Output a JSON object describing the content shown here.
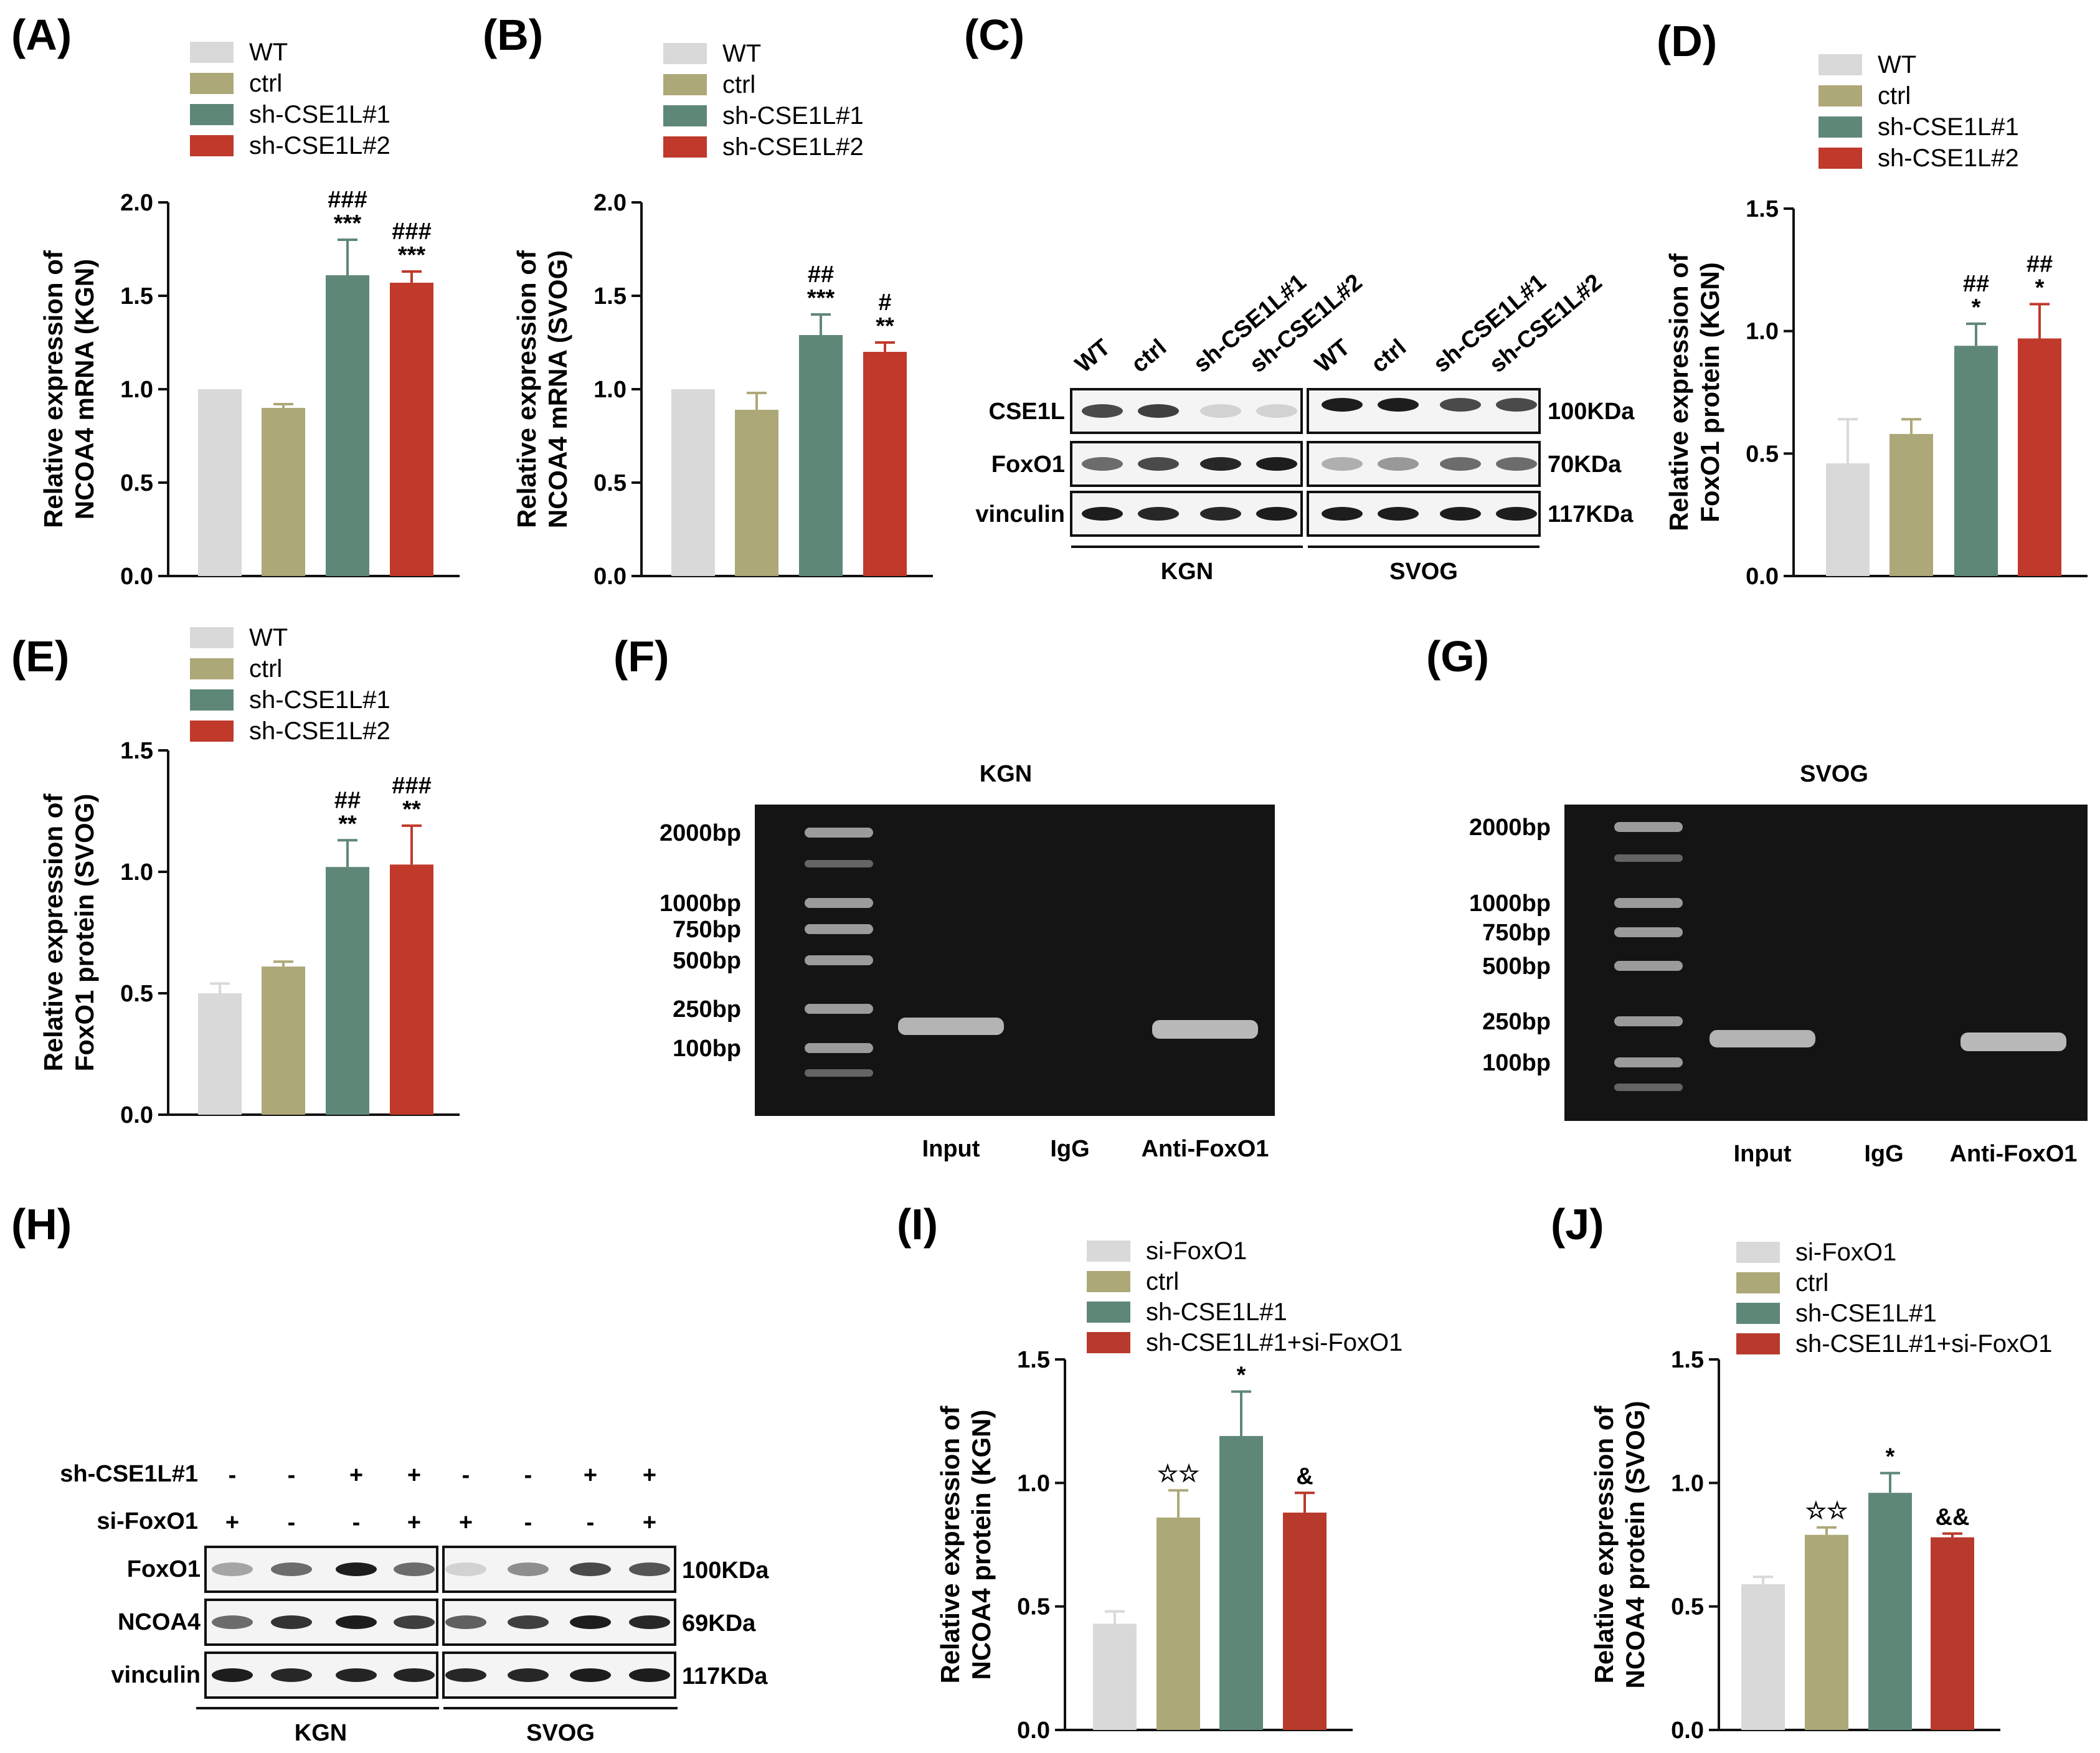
{
  "panel_labels": [
    "(A)",
    "(B)",
    "(C)",
    "(D)",
    "(E)",
    "(F)",
    "(G)",
    "(H)",
    "(I)",
    "(J)"
  ],
  "colors": {
    "WT": "#d9d9d9",
    "ctrl": "#ada878",
    "sh1": "#5f8777",
    "sh2": "#c0392b",
    "si": "#d9d9d9",
    "shsi": "#b83a2c"
  },
  "chart_data": [
    {
      "id": "A",
      "type": "bar",
      "categories": [
        "WT",
        "ctrl",
        "sh-CSE1L#1",
        "sh-CSE1L#2"
      ],
      "values": [
        1.0,
        0.9,
        1.61,
        1.57
      ],
      "errors": [
        0.0,
        0.02,
        0.19,
        0.06
      ],
      "sig_bottom": [
        "",
        "",
        "***",
        "***"
      ],
      "sig_top": [
        "",
        "",
        "###",
        "###"
      ],
      "ylabel_line1": "Relative expression of",
      "ylabel_line2": "NCOA4 mRNA (KGN)",
      "ylim": [
        0,
        2.0
      ],
      "yticks": [
        "0.0",
        "0.5",
        "1.0",
        "1.5",
        "2.0"
      ],
      "ytick_values": [
        0,
        0.5,
        1.0,
        1.5,
        2.0
      ],
      "legend": [
        "WT",
        "ctrl",
        "sh-CSE1L#1",
        "sh-CSE1L#2"
      ]
    },
    {
      "id": "B",
      "type": "bar",
      "categories": [
        "WT",
        "ctrl",
        "sh-CSE1L#1",
        "sh-CSE1L#2"
      ],
      "values": [
        1.0,
        0.89,
        1.29,
        1.2
      ],
      "errors": [
        0.0,
        0.09,
        0.11,
        0.05
      ],
      "sig_bottom": [
        "",
        "",
        "***",
        "**"
      ],
      "sig_top": [
        "",
        "",
        "##",
        "#"
      ],
      "ylabel_line1": "Relative expression of",
      "ylabel_line2": "NCOA4 mRNA (SVOG)",
      "ylim": [
        0,
        2.0
      ],
      "yticks": [
        "0.0",
        "0.5",
        "1.0",
        "1.5",
        "2.0"
      ],
      "ytick_values": [
        0,
        0.5,
        1.0,
        1.5,
        2.0
      ],
      "legend": [
        "WT",
        "ctrl",
        "sh-CSE1L#1",
        "sh-CSE1L#2"
      ]
    },
    {
      "id": "D",
      "type": "bar",
      "categories": [
        "WT",
        "ctrl",
        "sh-CSE1L#1",
        "sh-CSE1L#2"
      ],
      "values": [
        0.46,
        0.58,
        0.94,
        0.97
      ],
      "errors": [
        0.18,
        0.06,
        0.09,
        0.14
      ],
      "sig_bottom": [
        "",
        "",
        "*",
        "*"
      ],
      "sig_top": [
        "",
        "",
        "##",
        "##"
      ],
      "ylabel_line1": "Relative expression of",
      "ylabel_line2": "FoxO1 protein (KGN)",
      "ylim": [
        0,
        1.5
      ],
      "yticks": [
        "0.0",
        "0.5",
        "1.0",
        "1.5"
      ],
      "ytick_values": [
        0,
        0.5,
        1.0,
        1.5
      ],
      "legend": [
        "WT",
        "ctrl",
        "sh-CSE1L#1",
        "sh-CSE1L#2"
      ]
    },
    {
      "id": "E",
      "type": "bar",
      "categories": [
        "WT",
        "ctrl",
        "sh-CSE1L#1",
        "sh-CSE1L#2"
      ],
      "values": [
        0.5,
        0.61,
        1.02,
        1.03
      ],
      "errors": [
        0.04,
        0.02,
        0.11,
        0.16
      ],
      "sig_bottom": [
        "",
        "",
        "**",
        "**"
      ],
      "sig_top": [
        "",
        "",
        "##",
        "###"
      ],
      "ylabel_line1": "Relative expression of",
      "ylabel_line2": "FoxO1 protein (SVOG)",
      "ylim": [
        0,
        1.5
      ],
      "yticks": [
        "0.0",
        "0.5",
        "1.0",
        "1.5"
      ],
      "ytick_values": [
        0,
        0.5,
        1.0,
        1.5
      ],
      "legend": [
        "WT",
        "ctrl",
        "sh-CSE1L#1",
        "sh-CSE1L#2"
      ]
    },
    {
      "id": "I",
      "type": "bar",
      "categories": [
        "si-FoxO1",
        "ctrl",
        "sh-CSE1L#1",
        "sh-CSE1L#1+si-FoxO1"
      ],
      "values": [
        0.43,
        0.86,
        1.19,
        0.88
      ],
      "errors": [
        0.05,
        0.11,
        0.18,
        0.08
      ],
      "sig_bottom": [
        "",
        "☆☆",
        "*",
        "&"
      ],
      "sig_top": [
        "",
        "",
        "",
        ""
      ],
      "ylabel_line1": "Relative expression of",
      "ylabel_line2": "NCOA4 protein (KGN)",
      "ylim": [
        0,
        1.5
      ],
      "yticks": [
        "0.0",
        "0.5",
        "1.0",
        "1.5"
      ],
      "ytick_values": [
        0,
        0.5,
        1.0,
        1.5
      ],
      "legend": [
        "si-FoxO1",
        "ctrl",
        "sh-CSE1L#1",
        "sh-CSE1L#1+si-FoxO1"
      ]
    },
    {
      "id": "J",
      "type": "bar",
      "categories": [
        "si-FoxO1",
        "ctrl",
        "sh-CSE1L#1",
        "sh-CSE1L#1+si-FoxO1"
      ],
      "values": [
        0.59,
        0.79,
        0.96,
        0.78
      ],
      "errors": [
        0.03,
        0.03,
        0.08,
        0.015
      ],
      "sig_bottom": [
        "",
        "☆☆",
        "*",
        "&&"
      ],
      "sig_top": [
        "",
        "",
        "",
        ""
      ],
      "ylabel_line1": "Relative expression of",
      "ylabel_line2": "NCOA4 protein (SVOG)",
      "ylim": [
        0,
        1.5
      ],
      "yticks": [
        "0.0",
        "0.5",
        "1.0",
        "1.5"
      ],
      "ytick_values": [
        0,
        0.5,
        1.0,
        1.5
      ],
      "legend": [
        "si-FoxO1",
        "ctrl",
        "sh-CSE1L#1",
        "sh-CSE1L#1+si-FoxO1"
      ]
    }
  ],
  "blot_C": {
    "lanes": [
      "WT",
      "ctrl",
      "sh-CSE1L#1",
      "sh-CSE1L#2",
      "WT",
      "ctrl",
      "sh-CSE1L#1",
      "sh-CSE1L#2"
    ],
    "rows": [
      "CSE1L",
      "FoxO1",
      "vinculin"
    ],
    "sizes": [
      "100KDa",
      "70KDa",
      "117KDa"
    ],
    "groups": [
      "KGN",
      "SVOG"
    ]
  },
  "gel_F": {
    "title": "KGN",
    "ladder": [
      "2000bp",
      "1000bp",
      "750bp",
      "500bp",
      "250bp",
      "100bp"
    ],
    "lanes": [
      "Input",
      "IgG",
      "Anti-FoxO1"
    ]
  },
  "gel_G": {
    "title": "SVOG",
    "ladder": [
      "2000bp",
      "1000bp",
      "750bp",
      "500bp",
      "250bp",
      "100bp"
    ],
    "lanes": [
      "Input",
      "IgG",
      "Anti-FoxO1"
    ]
  },
  "blot_H": {
    "treatments": [
      {
        "name": "sh-CSE1L#1",
        "signs": [
          "-",
          "-",
          "+",
          "+",
          "-",
          "-",
          "+",
          "+"
        ]
      },
      {
        "name": "si-FoxO1",
        "signs": [
          "+",
          "-",
          "-",
          "+",
          "+",
          "-",
          "-",
          "+"
        ]
      }
    ],
    "rows": [
      "FoxO1",
      "NCOA4",
      "vinculin"
    ],
    "sizes": [
      "100KDa",
      "69KDa",
      "117KDa"
    ],
    "groups": [
      "KGN",
      "SVOG"
    ]
  }
}
